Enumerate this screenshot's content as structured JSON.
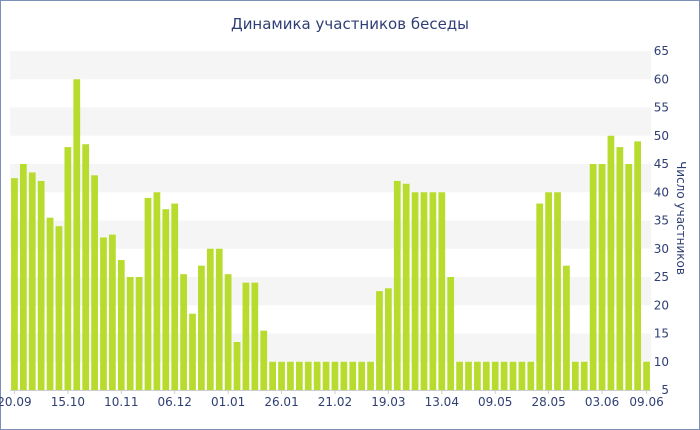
{
  "chart_data": {
    "type": "bar",
    "title": "Динамика участников беседы",
    "xlabel": "",
    "ylabel": "Число участников",
    "ylim": [
      5,
      65
    ],
    "yticks": [
      5,
      10,
      15,
      20,
      25,
      30,
      35,
      40,
      45,
      50,
      55,
      60,
      65
    ],
    "x_tick_labels": [
      "20.09",
      "15.10",
      "10.11",
      "06.12",
      "01.01",
      "26.01",
      "21.02",
      "19.03",
      "13.04",
      "09.05",
      "28.05",
      "03.06",
      "09.06"
    ],
    "x_tick_bar_index": [
      0,
      6,
      12,
      18,
      24,
      30,
      36,
      42,
      48,
      54,
      60,
      66,
      71
    ],
    "grid": true,
    "bar_color": "#b8dc2e",
    "stripe_color": "#f5f5f5",
    "series": [
      {
        "values": [
          42.5,
          45,
          43.5,
          42,
          35.5,
          34,
          48,
          60,
          48.5,
          43,
          32,
          32.5,
          28,
          25,
          25,
          39,
          40,
          37,
          38,
          25.5,
          18.5,
          27,
          30,
          30,
          25.5,
          13.5,
          24,
          24,
          15.5,
          10,
          10,
          10,
          10,
          10,
          10,
          10,
          10,
          10,
          10,
          10,
          10,
          22.5,
          23,
          42,
          41.5,
          40,
          40,
          40,
          40,
          25,
          10,
          10,
          10,
          10,
          10,
          10,
          10,
          10,
          10,
          38,
          40,
          40,
          27,
          10,
          10,
          45,
          45,
          50,
          48,
          45,
          49,
          10
        ]
      }
    ]
  }
}
